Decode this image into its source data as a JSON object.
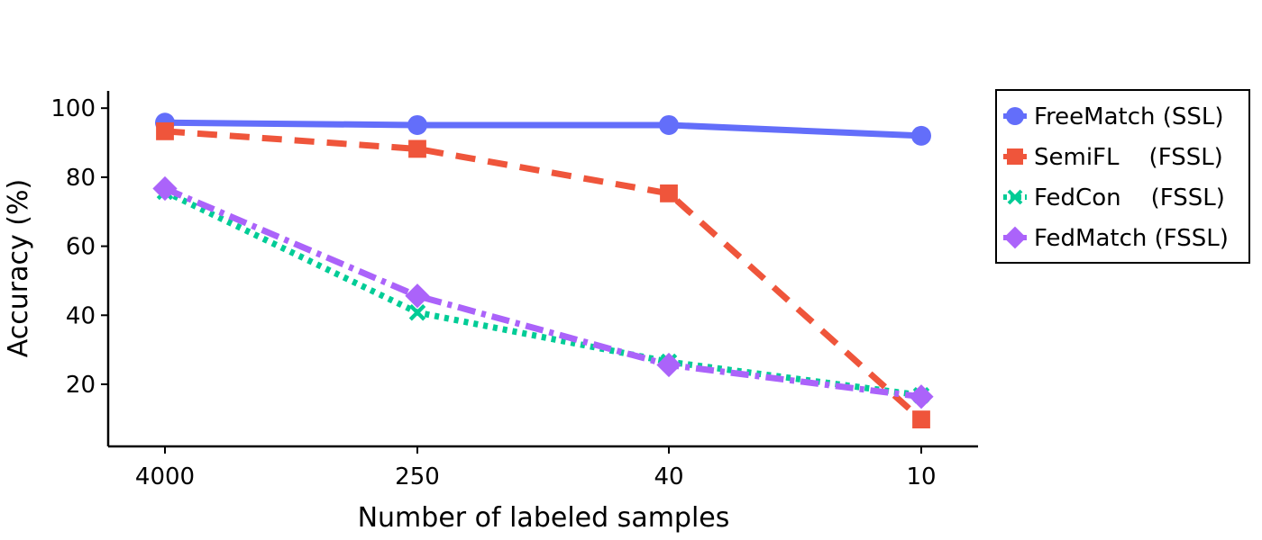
{
  "chart_data": {
    "type": "line",
    "title": "",
    "xlabel": "Number of labeled samples",
    "ylabel": "Accuracy (%)",
    "categories": [
      "4000",
      "250",
      "40",
      "10"
    ],
    "ylim": [
      2,
      105
    ],
    "yticks": [
      20,
      40,
      60,
      80,
      100
    ],
    "grid": false,
    "legend_position": "outside-right-top",
    "series": [
      {
        "name": "FreeMatch (SSL)",
        "color": "#636efa",
        "marker": "circle",
        "linestyle": "solid",
        "values": [
          95.8,
          95.1,
          95.1,
          92.0
        ]
      },
      {
        "name": "SemiFL    (FSSL)",
        "color": "#ef553b",
        "marker": "square",
        "linestyle": "dashed",
        "values": [
          93.3,
          88.2,
          75.3,
          9.8
        ]
      },
      {
        "name": "FedCon    (FSSL)",
        "color": "#00cc96",
        "marker": "x",
        "linestyle": "dotted",
        "values": [
          75.8,
          40.8,
          26.5,
          16.8
        ]
      },
      {
        "name": "FedMatch (FSSL)",
        "color": "#ab63fa",
        "marker": "diamond",
        "linestyle": "dashdot",
        "values": [
          76.7,
          45.6,
          25.6,
          16.4
        ]
      }
    ]
  }
}
